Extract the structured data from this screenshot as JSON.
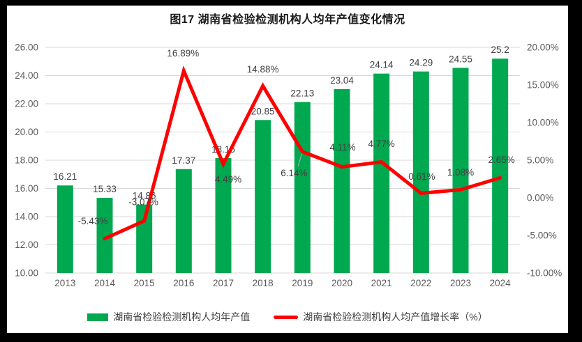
{
  "title": "图17 湖南省检验检测机构人均年产值变化情况",
  "legend": {
    "bar_label": "湖南省检验检测机构人均年产值",
    "line_label": "湖南省检验检测机构人均产值增长率（%）"
  },
  "colors": {
    "background": "#000000",
    "panel": "#FFFFFF",
    "bar": "#00A84F",
    "line": "#FE0000",
    "grid": "#D9D9D9",
    "axis_text": "#595959",
    "data_label": "#404040",
    "leader": "#A6A6A6",
    "title_text": "#1A1A1A"
  },
  "chart_data": {
    "type": "bar",
    "subtype": "combo-bar-line",
    "title": "图17 湖南省检验检测机构人均年产值变化情况",
    "categories": [
      "2013",
      "2014",
      "2015",
      "2016",
      "2017",
      "2018",
      "2019",
      "2020",
      "2021",
      "2022",
      "2023",
      "2024"
    ],
    "series": [
      {
        "name": "湖南省检验检测机构人均年产值",
        "type": "bar",
        "axis": "left",
        "values": [
          16.21,
          15.33,
          14.86,
          17.37,
          18.15,
          20.85,
          22.13,
          23.04,
          24.14,
          24.29,
          24.55,
          25.2
        ],
        "labels": [
          "16.21",
          "15.33",
          "14.86",
          "17.37",
          "18.15",
          "20.85",
          "22.13",
          "23.04",
          "24.14",
          "24.29",
          "24.55",
          "25.2"
        ]
      },
      {
        "name": "湖南省检验检测机构人均产值增长率（%）",
        "type": "line",
        "axis": "right",
        "x_start_index": 1,
        "values": [
          -5.43,
          -3.07,
          16.89,
          4.49,
          14.88,
          6.14,
          4.11,
          4.77,
          0.61,
          1.08,
          2.65
        ],
        "labels": [
          "-5.43%",
          "-3.07%",
          "16.89%",
          "4.49%",
          "14.88%",
          "6.14%",
          "4.11%",
          "4.77%",
          "0.61%",
          "1.08%",
          "2.65%"
        ],
        "label_offsets": [
          [
            -17,
            -25
          ],
          [
            -1,
            -27
          ],
          [
            -1,
            -25
          ],
          [
            7,
            22
          ],
          [
            0,
            -24
          ],
          [
            -12,
            31
          ],
          [
            1,
            -28
          ],
          [
            0,
            -26
          ],
          [
            1,
            -24
          ],
          [
            0,
            -25
          ],
          [
            2,
            -26
          ]
        ],
        "leader_line_index": 5
      }
    ],
    "left_axis": {
      "min": 10,
      "max": 26,
      "step": 2,
      "ticks": [
        "26.00",
        "24.00",
        "22.00",
        "20.00",
        "18.00",
        "16.00",
        "14.00",
        "12.00",
        "10.00"
      ]
    },
    "right_axis": {
      "min": -10,
      "max": 20,
      "step": 5,
      "ticks": [
        "20.00%",
        "15.00%",
        "10.00%",
        "5.00%",
        "0.00%",
        "-5.00%",
        "-10.00%"
      ]
    },
    "grid": true,
    "legend_position": "bottom"
  }
}
